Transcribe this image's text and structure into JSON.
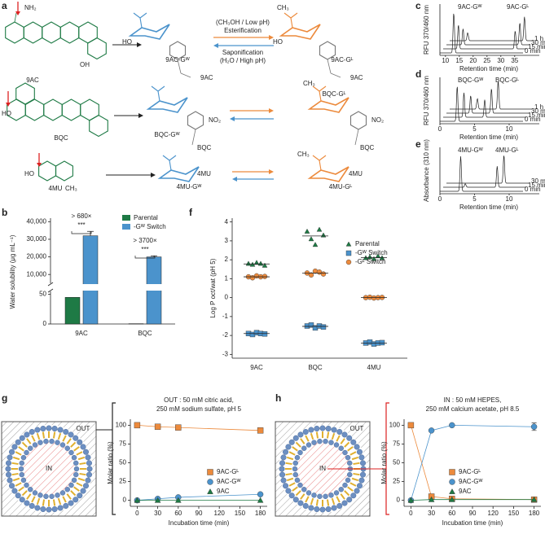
{
  "panel_labels": [
    "a",
    "b",
    "c",
    "d",
    "e",
    "f",
    "g",
    "h"
  ],
  "scheme": {
    "labels": [
      "9AC",
      "9AC-Gᵂ",
      "(CH₃OH / Low pH)",
      "Esterification",
      "Saponification",
      "(H₂O / High pH)",
      "9AC-Gᴸ",
      "BQC",
      "BQC-Gᵂ",
      "BQC-Gᴸ",
      "4MU",
      "4MU-Gᵂ",
      "4MU-Gᴸ"
    ],
    "atoms": [
      "NH₂",
      "OH",
      "HO",
      "9AC",
      "CH₃",
      "HO",
      "9AC",
      "HO",
      "NO₂",
      "BQC",
      "CH₃",
      "NO₂",
      "BQC",
      "HO",
      "CH₃",
      "4MU",
      "CH₃",
      "4MU"
    ]
  },
  "chromatograms": [
    {
      "ylabel": "RFU 370/460 nm",
      "xlabel": "Retention time (min)",
      "xlim": [
        8,
        38
      ],
      "xticks": [
        10,
        15,
        20,
        25,
        30,
        35
      ],
      "peak_labels": [
        "9AC-Gᵂ",
        "9AC-Gᴸ"
      ],
      "traces": [
        {
          "name": "0 min",
          "peaks": [
            {
              "x": 13,
              "height": 1
            }
          ]
        },
        {
          "name": "15 min",
          "peaks": [
            {
              "x": 13.5,
              "height": 0.6
            },
            {
              "x": 34,
              "height": 0.45
            }
          ]
        },
        {
          "name": "30 min",
          "peaks": [
            {
              "x": 14,
              "height": 0.4
            },
            {
              "x": 34.5,
              "height": 0.55
            }
          ]
        },
        {
          "name": "1 h",
          "peaks": [
            {
              "x": 14.5,
              "height": 0.2
            },
            {
              "x": 35,
              "height": 0.6
            }
          ]
        }
      ]
    },
    {
      "ylabel": "RFU 370/460 nm",
      "xlabel": "Retention time (min)",
      "xlim": [
        0,
        12
      ],
      "xticks": [
        0,
        5,
        10
      ],
      "peak_labels": [
        "BQC-Gᵂ",
        "BQC-Gᴸ"
      ],
      "traces": [
        {
          "name": "0 min",
          "peaks": [
            {
              "x": 2.5,
              "height": 1
            }
          ]
        },
        {
          "name": "15 min",
          "peaks": [
            {
              "x": 3,
              "height": 0.7
            },
            {
              "x": 6,
              "height": 0.5
            }
          ]
        },
        {
          "name": "30 min",
          "peaks": [
            {
              "x": 3.5,
              "height": 0.5
            },
            {
              "x": 6.5,
              "height": 0.7
            }
          ]
        },
        {
          "name": "1 h",
          "peaks": [
            {
              "x": 4,
              "height": 0.3
            },
            {
              "x": 7,
              "height": 0.8
            }
          ]
        }
      ]
    },
    {
      "ylabel": "Absorbance (310 nm)",
      "xlabel": "Retention time (min)",
      "xlim": [
        0,
        12
      ],
      "xticks": [
        0,
        5,
        10
      ],
      "peak_labels": [
        "4MU-Gᵂ",
        "4MU-Gᴸ"
      ],
      "traces": [
        {
          "name": "0 min",
          "peaks": [
            {
              "x": 3,
              "height": 1
            }
          ]
        },
        {
          "name": "15 min",
          "peaks": [
            {
              "x": 3.2,
              "height": 0.1
            },
            {
              "x": 7.8,
              "height": 0.6
            }
          ]
        },
        {
          "name": "30 min",
          "peaks": [
            {
              "x": 8.3,
              "height": 0.8
            }
          ]
        }
      ]
    }
  ],
  "solubility": {
    "type": "bar",
    "ylabel": "Water solubility (μg mL⁻¹)",
    "categories": [
      "9AC",
      "BQC"
    ],
    "segments": [
      {
        "ylim": [
          0,
          55
        ],
        "yticks": [
          0,
          50
        ]
      },
      {
        "ylim": [
          5000,
          42000
        ],
        "yticks": [
          {
            "value": 10000,
            "label": "10,000"
          },
          {
            "value": 20000,
            "label": "20,000"
          },
          {
            "value": 30000,
            "label": "30,000"
          },
          {
            "value": 40000,
            "label": "40,000"
          }
        ]
      }
    ],
    "series": [
      {
        "name": "Parental",
        "color": "#1e7a45",
        "values": [
          45,
          0.5
        ]
      },
      {
        "name": "-Gᵂ Switch",
        "color": "#4b93cc",
        "values": [
          32000,
          20000
        ],
        "errors": [
          2500,
          600
        ]
      }
    ],
    "annotations": [
      "> 680×",
      "***",
      "> 3700×",
      "***"
    ]
  },
  "logp": {
    "type": "scatter",
    "ylabel": "Log P oct/wat (pH 5)",
    "categories": [
      "9AC",
      "BQC",
      "4MU"
    ],
    "ylim": [
      -3.2,
      4.2
    ],
    "yticks": [
      -3,
      -2,
      -1,
      0,
      1,
      2,
      3,
      4
    ],
    "series": [
      {
        "name": "Parental",
        "color": "#1e7a45",
        "marker": "triangle",
        "values": [
          [
            1.8,
            1.75,
            1.85,
            1.8,
            1.7
          ],
          [
            3.5,
            3.1,
            2.8,
            3.6,
            3.3
          ],
          [
            2.1,
            2.15,
            2.05,
            2.2,
            2.1
          ]
        ],
        "means": [
          1.78,
          3.26,
          2.12
        ]
      },
      {
        "name": "-Gᵂ Switch",
        "color": "#4b93cc",
        "marker": "square",
        "values": [
          [
            -1.9,
            -1.95,
            -1.85,
            -1.9,
            -1.92
          ],
          [
            -1.5,
            -1.45,
            -1.6,
            -1.5,
            -1.55
          ],
          [
            -2.4,
            -2.35,
            -2.45,
            -2.4,
            -2.38
          ]
        ],
        "means": [
          -1.9,
          -1.52,
          -2.4
        ]
      },
      {
        "name": "-Gᴸ Switch",
        "color": "#ec8a3c",
        "marker": "circle",
        "values": [
          [
            1.1,
            1.05,
            1.15,
            1.1,
            1.12
          ],
          [
            1.3,
            1.2,
            1.4,
            1.35,
            1.25
          ],
          [
            0,
            0.02,
            -0.02,
            0,
            0.01
          ]
        ],
        "means": [
          1.1,
          1.3,
          0
        ]
      }
    ]
  },
  "release": [
    {
      "type": "line",
      "title_lines": [
        "OUT : 50 mM citric acid,",
        "250 mM sodium sulfate, pH 5"
      ],
      "box_label": "OUT",
      "inner_label": "IN",
      "legend": "right",
      "xlabel": "Incubation time (min)",
      "ylabel": "Molar ratio (%)",
      "x": [
        0,
        30,
        60,
        180
      ],
      "xlim": [
        -10,
        190
      ],
      "xticks": [
        0,
        30,
        60,
        90,
        120,
        150,
        180
      ],
      "ylim": [
        -8,
        108
      ],
      "yticks": [
        0,
        25,
        50,
        75,
        100
      ],
      "series": [
        {
          "name": "9AC-Gᴸ",
          "color": "#ec8a3c",
          "marker": "square",
          "values": [
            100,
            98,
            97,
            93
          ]
        },
        {
          "name": "9AC-Gᵂ",
          "color": "#4b93cc",
          "marker": "circle",
          "values": [
            0,
            2,
            4,
            8
          ]
        },
        {
          "name": "9AC",
          "color": "#1e7a45",
          "marker": "triangle",
          "values": [
            0,
            0,
            0,
            0
          ]
        }
      ]
    },
    {
      "type": "line",
      "title_lines": [
        "IN : 50 mM HEPES,",
        "250 mM calcium acetate, pH 8.5"
      ],
      "box_label": "OUT",
      "inner_label": "IN",
      "legend": "center",
      "xlabel": "Incubation time (min)",
      "ylabel": "Molar ratio (%)",
      "x": [
        0,
        30,
        60,
        180
      ],
      "xlim": [
        -10,
        190
      ],
      "xticks": [
        0,
        30,
        60,
        90,
        120,
        150,
        180
      ],
      "ylim": [
        -8,
        108
      ],
      "yticks": [
        0,
        25,
        50,
        75,
        100
      ],
      "series": [
        {
          "name": "9AC-Gᴸ",
          "color": "#ec8a3c",
          "marker": "square",
          "values": [
            100,
            5,
            2,
            1
          ]
        },
        {
          "name": "9AC-Gᵂ",
          "color": "#4b93cc",
          "marker": "circle",
          "values": [
            0,
            93,
            100,
            98
          ],
          "errors": [
            0,
            0,
            0,
            5
          ]
        },
        {
          "name": "9AC",
          "color": "#1e7a45",
          "marker": "triangle",
          "values": [
            0,
            1,
            1,
            1
          ]
        }
      ]
    }
  ]
}
